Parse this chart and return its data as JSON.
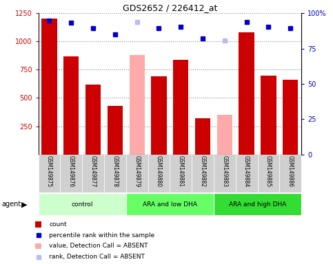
{
  "title": "GDS2652 / 226412_at",
  "samples": [
    "GSM149875",
    "GSM149876",
    "GSM149877",
    "GSM149878",
    "GSM149879",
    "GSM149880",
    "GSM149881",
    "GSM149882",
    "GSM149883",
    "GSM149884",
    "GSM149885",
    "GSM149886"
  ],
  "bar_values": [
    1200,
    870,
    620,
    430,
    null,
    690,
    840,
    320,
    null,
    1080,
    700,
    660
  ],
  "bar_absent_values": [
    null,
    null,
    null,
    null,
    880,
    null,
    null,
    null,
    350,
    null,
    null,
    null
  ],
  "dot_values": [
    1185,
    1165,
    1120,
    1065,
    null,
    1120,
    1130,
    1025,
    null,
    1170,
    1130,
    1115
  ],
  "dot_absent_values": [
    null,
    null,
    null,
    null,
    1175,
    null,
    null,
    null,
    1010,
    null,
    null,
    null
  ],
  "bar_color": "#cc0000",
  "bar_absent_color": "#ffaaaa",
  "dot_color": "#0000cc",
  "dot_absent_color": "#bbbbee",
  "ylim_left": [
    0,
    1250
  ],
  "ylim_right": [
    0,
    100
  ],
  "groups": [
    {
      "label": "control",
      "start": 0,
      "end": 3,
      "color": "#ccffcc"
    },
    {
      "label": "ARA and low DHA",
      "start": 4,
      "end": 7,
      "color": "#66ff66"
    },
    {
      "label": "ARA and high DHA",
      "start": 8,
      "end": 11,
      "color": "#33dd33"
    }
  ],
  "yticks_left": [
    250,
    500,
    750,
    1000,
    1250
  ],
  "yticks_right": [
    0,
    25,
    50,
    75,
    100
  ],
  "ytick_labels_right": [
    "0",
    "25",
    "50",
    "75",
    "100%"
  ]
}
